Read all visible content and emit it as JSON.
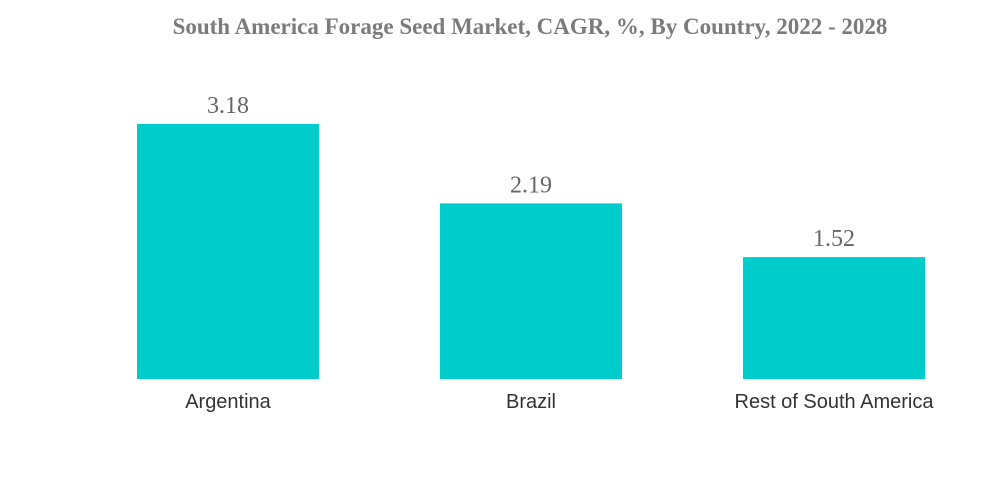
{
  "chart_data": {
    "type": "bar",
    "title": "South America Forage Seed Market, CAGR, %, By Country, 2022 - 2028",
    "categories": [
      "Argentina",
      "Brazil",
      "Rest of South America"
    ],
    "values": [
      3.18,
      2.19,
      1.52
    ],
    "value_labels": [
      "3.18",
      "2.19",
      "1.52"
    ],
    "xlabel": "",
    "ylabel": "",
    "ylim": [
      0,
      3.18
    ],
    "grid": false,
    "bar_color": "#00CCCC"
  }
}
